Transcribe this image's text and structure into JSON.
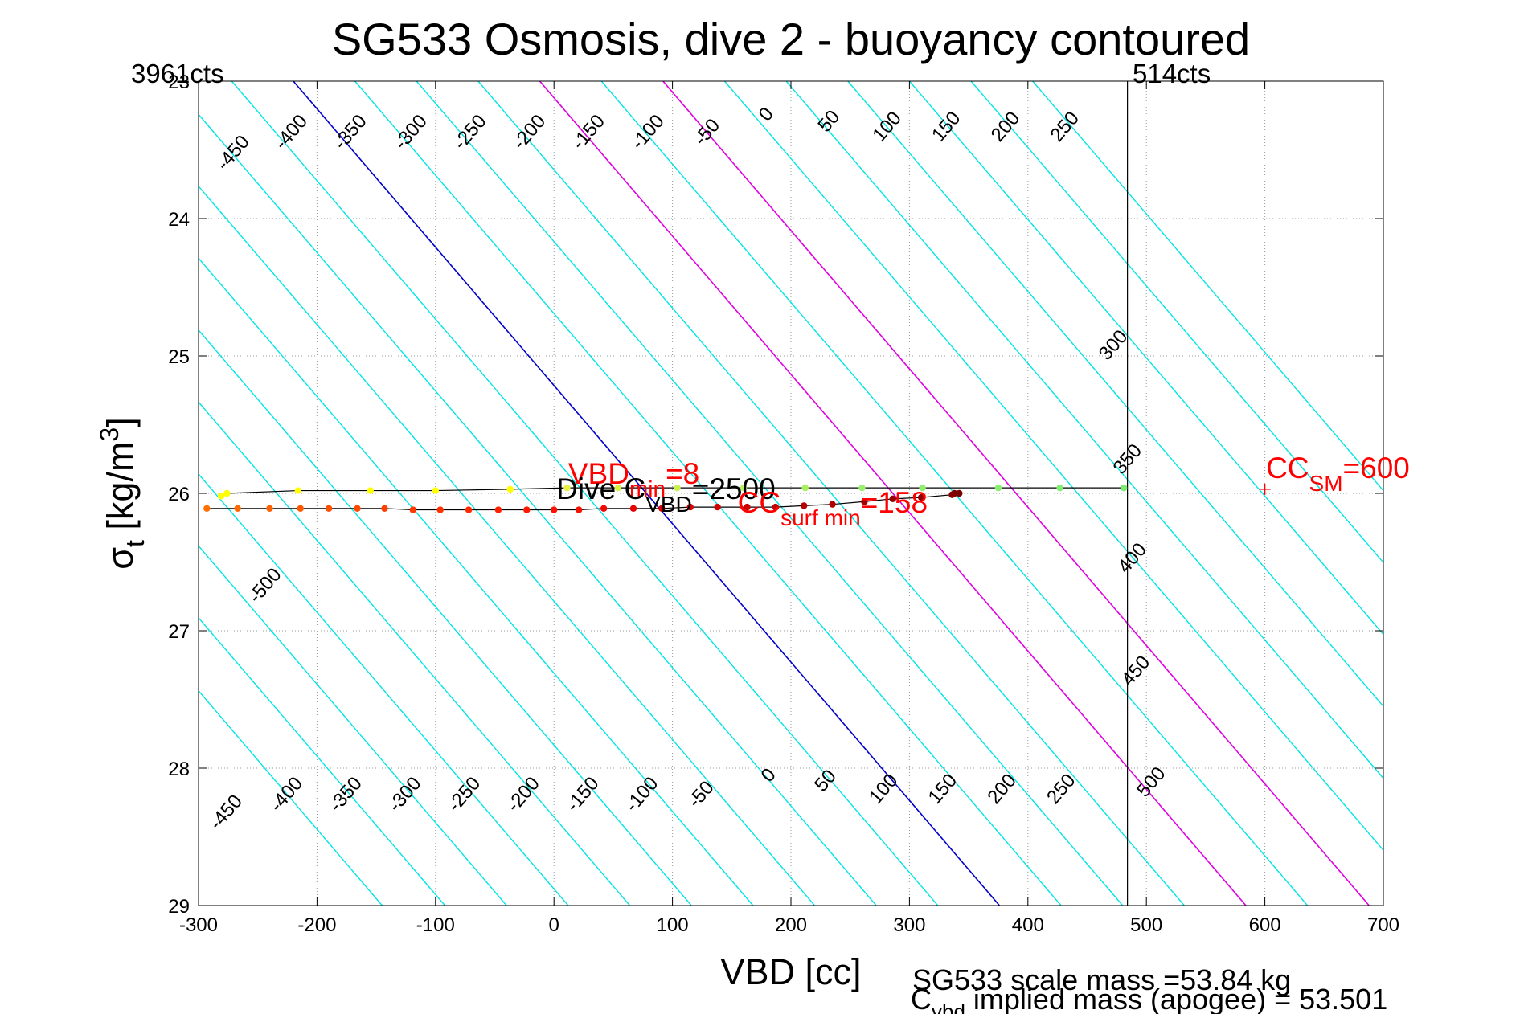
{
  "chart_data": {
    "type": "line",
    "title": "SG533 Osmosis, dive 2 - buoyancy contoured",
    "xlabel": "VBD [cc]",
    "ylabel_main": "σ",
    "ylabel_sub": "t",
    "ylabel_unit_start": " [kg/m",
    "ylabel_unit_sup": "3",
    "ylabel_unit_end": "]",
    "xlim": [
      -300,
      700
    ],
    "ylim": [
      23,
      29
    ],
    "y_reversed": true,
    "grid": "dotted",
    "x_ticks": [
      -300,
      -200,
      -100,
      0,
      100,
      200,
      300,
      400,
      500,
      600,
      700
    ],
    "x_tick_labels": [
      "-300",
      "-200",
      "-100",
      "0",
      "100",
      "200",
      "300",
      "400",
      "500",
      "600",
      "700"
    ],
    "y_ticks": [
      23,
      24,
      25,
      26,
      27,
      28,
      29
    ],
    "y_tick_labels": [
      "23",
      "24",
      "25",
      "26",
      "27",
      "28",
      "29"
    ],
    "top_left_label": "3961cts",
    "top_right_label": "514cts",
    "vertical_line_x": 484,
    "contours": {
      "levels": [
        -500,
        -450,
        -400,
        -350,
        -300,
        -250,
        -200,
        -150,
        -100,
        -50,
        0,
        50,
        100,
        150,
        200,
        250,
        300,
        350,
        400,
        450,
        500,
        550,
        600
      ],
      "x_at_top": [
        -740,
        -688,
        -636,
        -584,
        -532,
        -480,
        -428,
        -376,
        -324,
        -272,
        -220,
        -168,
        -116,
        -64,
        -12,
        40,
        92,
        144,
        196,
        248,
        300,
        352,
        404
      ],
      "x_at_bottom": [
        -145,
        -92,
        -40,
        12,
        64,
        116,
        168,
        220,
        272,
        324,
        376,
        428,
        480,
        532,
        584,
        636,
        688,
        740,
        792,
        844,
        896,
        948,
        1000
      ],
      "color_default": "#00e5e5",
      "color_zero": "#0000cc",
      "color_highlight": "#e000e0",
      "highlight_levels": [
        200,
        300
      ],
      "top_labels": [
        {
          "text": "-450",
          "x": -267,
          "y": 23.55
        },
        {
          "text": "-400",
          "x": -218,
          "y": 23.4
        },
        {
          "text": "-350",
          "x": -168,
          "y": 23.4
        },
        {
          "text": "-300",
          "x": -117,
          "y": 23.4
        },
        {
          "text": "-250",
          "x": -67,
          "y": 23.4
        },
        {
          "text": "-200",
          "x": -17,
          "y": 23.4
        },
        {
          "text": "-150",
          "x": 33,
          "y": 23.4
        },
        {
          "text": "-100",
          "x": 83,
          "y": 23.4
        },
        {
          "text": "-50",
          "x": 133,
          "y": 23.4
        },
        {
          "text": "0",
          "x": 183,
          "y": 23.27
        },
        {
          "text": "50",
          "x": 236,
          "y": 23.32
        },
        {
          "text": "100",
          "x": 285,
          "y": 23.36
        },
        {
          "text": "150",
          "x": 335,
          "y": 23.36
        },
        {
          "text": "200",
          "x": 385,
          "y": 23.36
        },
        {
          "text": "250",
          "x": 435,
          "y": 23.36
        },
        {
          "text": "300",
          "x": 476,
          "y": 24.95
        },
        {
          "text": "350",
          "x": 488,
          "y": 25.78
        },
        {
          "text": "400",
          "x": 492,
          "y": 26.5
        },
        {
          "text": "450",
          "x": 495,
          "y": 27.32
        },
        {
          "text": "500",
          "x": 508,
          "y": 28.13
        }
      ],
      "bottom_labels": [
        {
          "text": "-500",
          "x": -240,
          "y": 26.7
        },
        {
          "text": "-450",
          "x": -273,
          "y": 28.35
        },
        {
          "text": "-400",
          "x": -222,
          "y": 28.22
        },
        {
          "text": "-350",
          "x": -172,
          "y": 28.22
        },
        {
          "text": "-300",
          "x": -122,
          "y": 28.22
        },
        {
          "text": "-250",
          "x": -72,
          "y": 28.22
        },
        {
          "text": "-200",
          "x": -22,
          "y": 28.22
        },
        {
          "text": "-150",
          "x": 28,
          "y": 28.22
        },
        {
          "text": "-100",
          "x": 78,
          "y": 28.22
        },
        {
          "text": "-50",
          "x": 128,
          "y": 28.22
        },
        {
          "text": "0",
          "x": 185,
          "y": 28.08
        },
        {
          "text": "50",
          "x": 233,
          "y": 28.12
        },
        {
          "text": "100",
          "x": 282,
          "y": 28.18
        },
        {
          "text": "150",
          "x": 332,
          "y": 28.18
        },
        {
          "text": "200",
          "x": 382,
          "y": 28.18
        },
        {
          "text": "250",
          "x": 432,
          "y": 28.18
        }
      ]
    },
    "series": [
      {
        "line_color": "#000000",
        "x": [
          -281,
          -276,
          -216,
          -155,
          -100,
          -37,
          11,
          54,
          104,
          160,
          212,
          260,
          311,
          375,
          427,
          481
        ],
        "y": [
          26.02,
          26.0,
          25.98,
          25.98,
          25.98,
          25.97,
          25.96,
          25.96,
          25.96,
          25.96,
          25.96,
          25.96,
          25.96,
          25.96,
          25.96,
          25.96
        ],
        "colors": [
          "#ffff00",
          "#ffff00",
          "#ffff00",
          "#ffff00",
          "#ffff00",
          "#ffff00",
          "#e8f040",
          "#d8f040",
          "#c8f050",
          "#b8f060",
          "#a8f060",
          "#98f070",
          "#90ee70",
          "#88ee70",
          "#80ee70",
          "#78ee70"
        ]
      },
      {
        "line_color": "#000000",
        "x": [
          -293,
          -267,
          -240,
          -214,
          -190,
          -166,
          -143,
          -119,
          -96,
          -72,
          -47,
          -23,
          0,
          21,
          42,
          67,
          91,
          115,
          138,
          163,
          187,
          211,
          235,
          262,
          286,
          310,
          336,
          338,
          342
        ],
        "y": [
          26.11,
          26.11,
          26.11,
          26.11,
          26.11,
          26.11,
          26.11,
          26.12,
          26.12,
          26.12,
          26.12,
          26.12,
          26.12,
          26.12,
          26.11,
          26.11,
          26.11,
          26.1,
          26.1,
          26.1,
          26.1,
          26.09,
          26.08,
          26.06,
          26.04,
          26.03,
          26.01,
          26.0,
          26.0
        ],
        "colors": [
          "#ff7000",
          "#ff6800",
          "#ff6000",
          "#ff5800",
          "#ff5000",
          "#ff4800",
          "#ff4000",
          "#ff3800",
          "#ff3000",
          "#ff2800",
          "#ff2000",
          "#ff1800",
          "#ff1000",
          "#f81000",
          "#f00800",
          "#e80000",
          "#e00000",
          "#d80000",
          "#d00000",
          "#c80000",
          "#c00000",
          "#b80000",
          "#b00000",
          "#a00000",
          "#980000",
          "#900000",
          "#880000",
          "#800000",
          "#780000"
        ]
      }
    ],
    "marker_cc_sm": {
      "x": 600,
      "y": 25.97,
      "color": "#ff0000"
    },
    "annotations": [
      {
        "main": "VBD",
        "sub": "min",
        "rest": "=8",
        "color": "#ff0000",
        "x": 12,
        "y": 25.93
      },
      {
        "main": "Dive C",
        "sub": "VBD",
        "rest": "=2500",
        "color": "#000000",
        "x": 2,
        "y": 26.04
      },
      {
        "main": "CC",
        "sub": "surf min",
        "rest": "=158",
        "color": "#ff0000",
        "x": 155,
        "y": 26.14
      },
      {
        "main": "CC",
        "sub": "SM",
        "rest": "=600",
        "color": "#ff0000",
        "x": 601,
        "y": 25.89
      }
    ],
    "footer_line1": "SG533 scale mass =53.84 kg",
    "footer_line2_main": "C",
    "footer_line2_sub": "vbd",
    "footer_line2_rest": " implied mass (apogee) = 53.501"
  }
}
